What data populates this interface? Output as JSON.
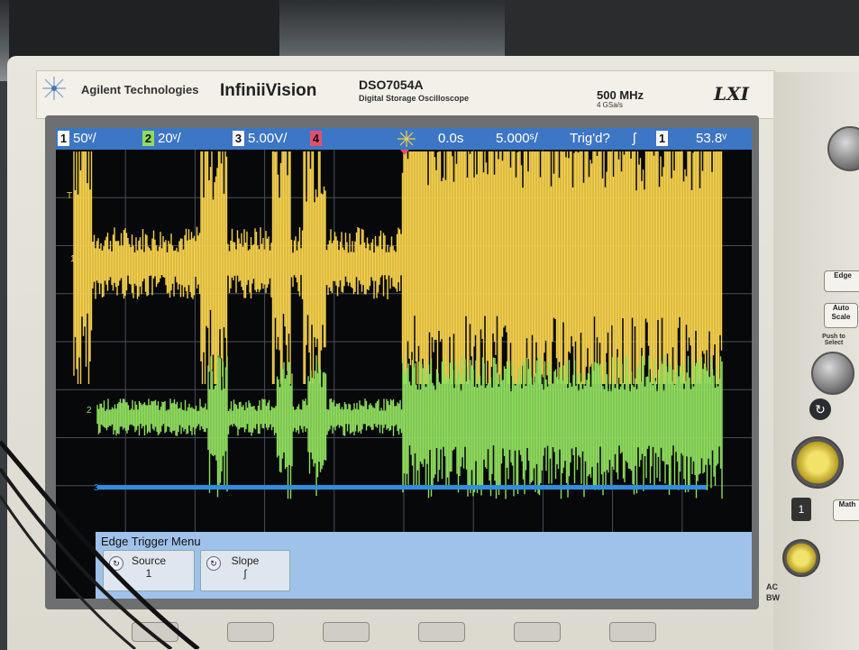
{
  "brand": {
    "name": "Agilent Technologies",
    "series": "InfiniiVision",
    "model": "DSO7054A",
    "model_sub": "Digital Storage Oscilloscope",
    "bandwidth": "500 MHz",
    "sample_rate": "4 GSa/s",
    "logo_text": "LXI"
  },
  "status_bar": {
    "ch1_num": "1",
    "ch1_scale": "50ᵛ/",
    "ch2_num": "2",
    "ch2_scale": "20ᵛ/",
    "ch3_num": "3",
    "ch3_scale": "5.00V/",
    "ch4_num": "4",
    "time_delay": "0.0s",
    "time_scale": "5.000ˢ/",
    "trigger_status": "Trig'd?",
    "trigger_slope": "ʃ",
    "trigger_ch": "1",
    "trigger_level": "53.8ᵛ"
  },
  "channel_markers": {
    "t_marker": "T",
    "ch1": "1",
    "ch2": "2",
    "ch3": "3"
  },
  "menu": {
    "title": "Edge Trigger Menu",
    "softkeys": [
      {
        "label": "Source",
        "value": "1"
      },
      {
        "label": "Slope",
        "value": "ʃ"
      }
    ]
  },
  "front_panel": {
    "edge_button": "Edge",
    "auto_scale": "Auto Scale",
    "push_select": "Push to Select",
    "math_button": "Math",
    "bw_label": "BW",
    "ac_label": "AC"
  },
  "colors": {
    "ch1": "#f4d04c",
    "ch2": "#8fdc5e",
    "ch3": "#2e8fe0",
    "ch4": "#e0506e",
    "status_bar": "#3d76c4",
    "menu_bg": "#9fc2ea"
  }
}
